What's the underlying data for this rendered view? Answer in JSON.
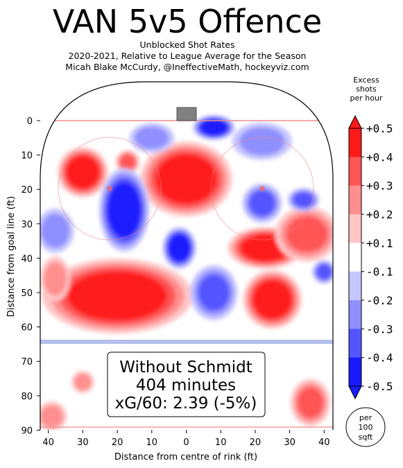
{
  "header": {
    "title": "VAN 5v5 Offence",
    "subtitle_lines": [
      "Unblocked Shot Rates",
      "2020-2021, Relative to League Average for the Season",
      "Micah Blake McCurdy, @IneffectiveMath, hockeyviz.com"
    ]
  },
  "annotation": {
    "lines": [
      "Without Schmidt",
      "404 minutes",
      "xG/60: 2.39 (-5%)"
    ]
  },
  "colorbar": {
    "title_lines": [
      "Excess",
      "shots",
      "per hour"
    ],
    "tick_labels": [
      "+0.5",
      "+0.4",
      "+0.3",
      "+0.2",
      "+0.1",
      "-0.1",
      "-0.2",
      "-0.3",
      "-0.4",
      "-0.5"
    ],
    "colors": [
      "#ff1a1a",
      "#ff5555",
      "#ff8f8f",
      "#ffc6c6",
      "#ffffff",
      "#c6c6ff",
      "#8f8fff",
      "#5555ff",
      "#1a1aff"
    ]
  },
  "unit_badge": {
    "lines": [
      "per",
      "100",
      "sqft"
    ]
  },
  "chart_data": {
    "type": "heatmap",
    "title": "VAN 5v5 Offence",
    "xlabel": "Distance from centre of rink (ft)",
    "ylabel": "Distance from goal line (ft)",
    "x_ticks": [
      "40",
      "30",
      "20",
      "10",
      "0",
      "10",
      "20",
      "30",
      "40"
    ],
    "y_ticks": [
      "0",
      "10",
      "20",
      "30",
      "40",
      "50",
      "60",
      "70",
      "80",
      "90"
    ],
    "xlim": [
      -42.5,
      42.5
    ],
    "ylim": [
      90,
      -11
    ],
    "color_range": [
      -0.5,
      0.5
    ],
    "hotspots": [
      {
        "x": 0,
        "y": 17,
        "rx": 11,
        "ry": 9,
        "value": 0.5
      },
      {
        "x": -30,
        "y": 15,
        "rx": 6,
        "ry": 6,
        "value": 0.5
      },
      {
        "x": -20,
        "y": 51,
        "rx": 18,
        "ry": 9,
        "value": 0.5
      },
      {
        "x": 23,
        "y": 37,
        "rx": 9,
        "ry": 5,
        "value": 0.5
      },
      {
        "x": 25,
        "y": 52,
        "rx": 7,
        "ry": 7,
        "value": 0.5
      },
      {
        "x": 35,
        "y": 33,
        "rx": 8,
        "ry": 7,
        "value": 0.3
      },
      {
        "x": -17,
        "y": 12,
        "rx": 3,
        "ry": 3,
        "value": 0.3
      },
      {
        "x": 36,
        "y": 82,
        "rx": 5,
        "ry": 6,
        "value": 0.3
      },
      {
        "x": -39,
        "y": 86,
        "rx": 4,
        "ry": 4,
        "value": 0.2
      },
      {
        "x": -30,
        "y": 76,
        "rx": 3,
        "ry": 3,
        "value": 0.2
      },
      {
        "x": -38,
        "y": 46,
        "rx": 4,
        "ry": 6,
        "value": 0.2
      },
      {
        "x": -18,
        "y": 26,
        "rx": 6,
        "ry": 10,
        "value": -0.5
      },
      {
        "x": -2,
        "y": 37,
        "rx": 4,
        "ry": 5,
        "value": -0.5
      },
      {
        "x": 8,
        "y": 2,
        "rx": 5,
        "ry": 3,
        "value": -0.5
      },
      {
        "x": 8,
        "y": 50,
        "rx": 6,
        "ry": 7,
        "value": -0.3
      },
      {
        "x": 22,
        "y": 24,
        "rx": 5,
        "ry": 5,
        "value": -0.3
      },
      {
        "x": 34,
        "y": 23,
        "rx": 4,
        "ry": 3,
        "value": -0.3
      },
      {
        "x": 22,
        "y": 6,
        "rx": 8,
        "ry": 5,
        "value": -0.2
      },
      {
        "x": -38,
        "y": 32,
        "rx": 5,
        "ry": 6,
        "value": -0.2
      },
      {
        "x": -10,
        "y": 5,
        "rx": 6,
        "ry": 4,
        "value": -0.2
      },
      {
        "x": 40,
        "y": 44,
        "rx": 3,
        "ry": 3,
        "value": -0.3
      }
    ]
  }
}
